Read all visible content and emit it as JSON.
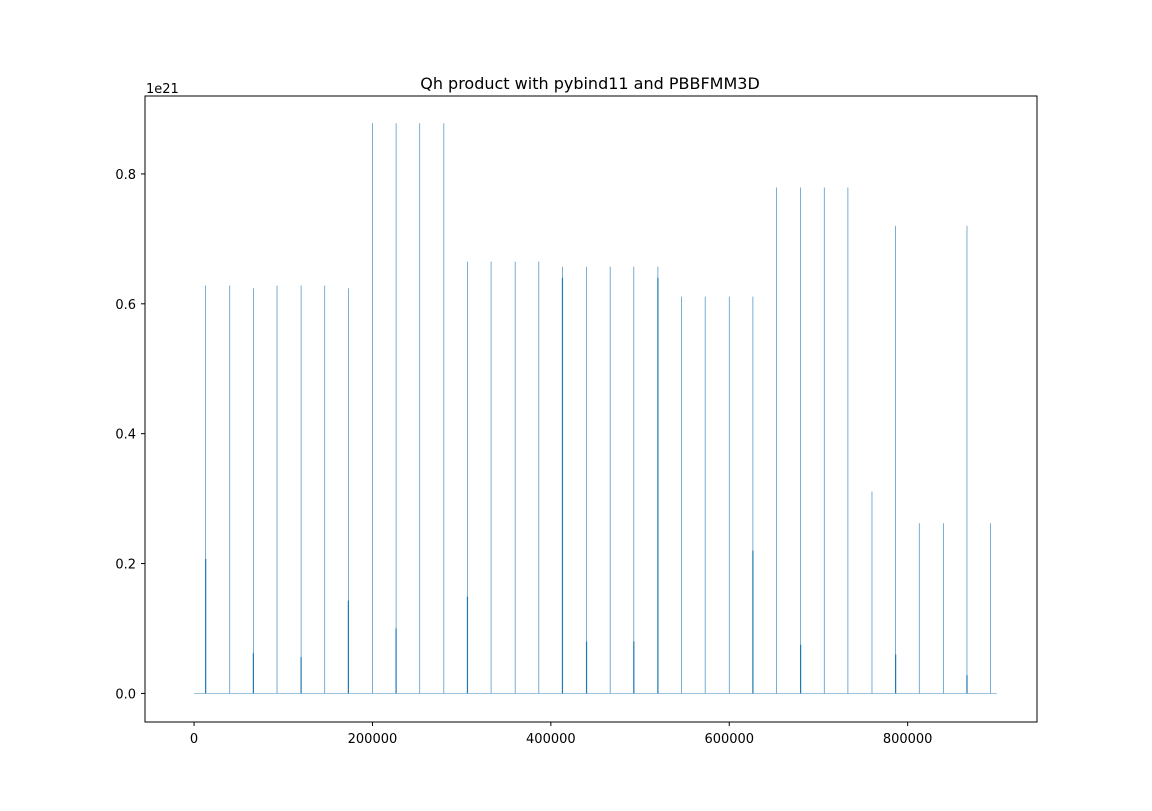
{
  "chart_data": {
    "type": "line",
    "title": "Qh product with pybind11 and PBBFMM3D",
    "xlabel": "",
    "ylabel": "",
    "y_offset_label": "1e21",
    "xlim": [
      -55000,
      945000
    ],
    "ylim": [
      -0.044,
      0.92
    ],
    "x_ticks": [
      0,
      200000,
      400000,
      600000,
      800000
    ],
    "x_tick_labels": [
      "0",
      "200000",
      "400000",
      "600000",
      "800000"
    ],
    "y_ticks": [
      0.0,
      0.2,
      0.4,
      0.6,
      0.8
    ],
    "y_tick_labels": [
      "0.0",
      "0.2",
      "0.4",
      "0.6",
      "0.8"
    ],
    "grid": false,
    "color": "#1f77b4",
    "x_range": [
      0,
      900000
    ],
    "series": [
      {
        "spikes": [
          {
            "x": 13000,
            "y": 0.628
          },
          {
            "x": 40000,
            "y": 0.628
          },
          {
            "x": 66500,
            "y": 0.624
          },
          {
            "x": 93000,
            "y": 0.628
          },
          {
            "x": 120000,
            "y": 0.628
          },
          {
            "x": 146500,
            "y": 0.628
          },
          {
            "x": 173000,
            "y": 0.624
          },
          {
            "x": 200000,
            "y": 0.878
          },
          {
            "x": 226500,
            "y": 0.878
          },
          {
            "x": 253000,
            "y": 0.878
          },
          {
            "x": 280000,
            "y": 0.878
          },
          {
            "x": 306500,
            "y": 0.665
          },
          {
            "x": 333000,
            "y": 0.665
          },
          {
            "x": 360000,
            "y": 0.665
          },
          {
            "x": 386500,
            "y": 0.665
          },
          {
            "x": 413000,
            "y": 0.657
          },
          {
            "x": 440000,
            "y": 0.657
          },
          {
            "x": 466500,
            "y": 0.657
          },
          {
            "x": 493000,
            "y": 0.657
          },
          {
            "x": 520000,
            "y": 0.657
          },
          {
            "x": 546500,
            "y": 0.611
          },
          {
            "x": 573000,
            "y": 0.611
          },
          {
            "x": 600000,
            "y": 0.611
          },
          {
            "x": 626500,
            "y": 0.611
          },
          {
            "x": 653000,
            "y": 0.779
          },
          {
            "x": 680000,
            "y": 0.779
          },
          {
            "x": 706500,
            "y": 0.779
          },
          {
            "x": 733000,
            "y": 0.779
          },
          {
            "x": 760000,
            "y": 0.311
          },
          {
            "x": 786500,
            "y": 0.72
          },
          {
            "x": 813000,
            "y": 0.262
          },
          {
            "x": 840000,
            "y": 0.262
          },
          {
            "x": 866500,
            "y": 0.72
          },
          {
            "x": 893000,
            "y": 0.262
          }
        ],
        "minor_spikes": [
          {
            "x": 13000,
            "y": 0.207
          },
          {
            "x": 66500,
            "y": 0.062
          },
          {
            "x": 120000,
            "y": 0.056
          },
          {
            "x": 173000,
            "y": 0.143
          },
          {
            "x": 226500,
            "y": 0.1
          },
          {
            "x": 306500,
            "y": 0.149
          },
          {
            "x": 413000,
            "y": 0.64
          },
          {
            "x": 440000,
            "y": 0.08
          },
          {
            "x": 493000,
            "y": 0.08
          },
          {
            "x": 520000,
            "y": 0.64
          },
          {
            "x": 626500,
            "y": 0.22
          },
          {
            "x": 680000,
            "y": 0.075
          },
          {
            "x": 786500,
            "y": 0.06
          },
          {
            "x": 866500,
            "y": 0.028
          }
        ]
      }
    ]
  }
}
